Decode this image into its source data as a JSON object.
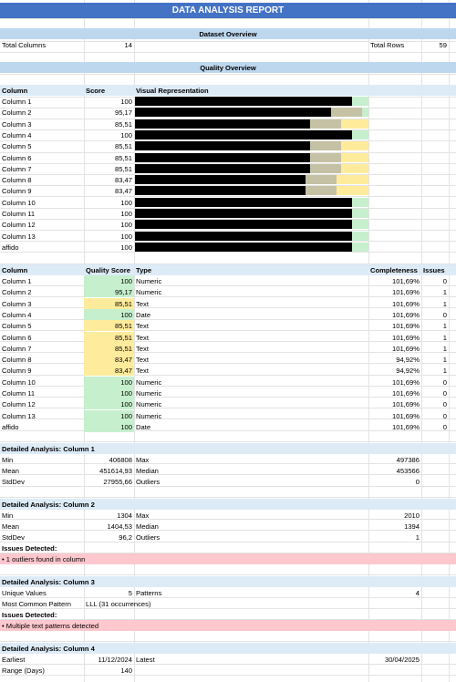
{
  "title": "DATA ANALYSIS REPORT",
  "dataset_overview": {
    "heading": "Dataset Overview",
    "total_columns_label": "Total Columns",
    "total_columns_value": "14",
    "total_rows_label": "Total Rows",
    "total_rows_value": "59"
  },
  "quality_overview": {
    "heading": "Quality Overview",
    "col_header": "Column",
    "score_header": "Score",
    "visual_header": "Visual Representation",
    "rows": [
      {
        "name": "Column 1",
        "score": "100",
        "pct": 1.0,
        "status": "green"
      },
      {
        "name": "Column 2",
        "score": "95,17",
        "pct": 0.9517,
        "status": "green"
      },
      {
        "name": "Column 3",
        "score": "85,51",
        "pct": 0.8551,
        "status": "yellow"
      },
      {
        "name": "Column 4",
        "score": "100",
        "pct": 1.0,
        "status": "green"
      },
      {
        "name": "Column 5",
        "score": "85,51",
        "pct": 0.8551,
        "status": "yellow"
      },
      {
        "name": "Column 6",
        "score": "85,51",
        "pct": 0.8551,
        "status": "yellow"
      },
      {
        "name": "Column 7",
        "score": "85,51",
        "pct": 0.8551,
        "status": "yellow"
      },
      {
        "name": "Column 8",
        "score": "83,47",
        "pct": 0.8347,
        "status": "yellow"
      },
      {
        "name": "Column 9",
        "score": "83,47",
        "pct": 0.8347,
        "status": "yellow"
      },
      {
        "name": "Column 10",
        "score": "100",
        "pct": 1.0,
        "status": "green"
      },
      {
        "name": "Column 11",
        "score": "100",
        "pct": 1.0,
        "status": "green"
      },
      {
        "name": "Column 12",
        "score": "100",
        "pct": 1.0,
        "status": "green"
      },
      {
        "name": "Column 13",
        "score": "100",
        "pct": 1.0,
        "status": "green"
      },
      {
        "name": "affido",
        "score": "100",
        "pct": 1.0,
        "status": "green"
      }
    ]
  },
  "detail_table": {
    "headers": {
      "column": "Column",
      "quality": "Quality Score",
      "type": "Type",
      "completeness": "Completeness",
      "issues": "Issues"
    },
    "rows": [
      {
        "name": "Column 1",
        "score": "100",
        "type": "Numeric",
        "completeness": "101,69%",
        "issues": "0",
        "status": "green"
      },
      {
        "name": "Column 2",
        "score": "95,17",
        "type": "Numeric",
        "completeness": "101,69%",
        "issues": "1",
        "status": "green"
      },
      {
        "name": "Column 3",
        "score": "85,51",
        "type": "Text",
        "completeness": "101,69%",
        "issues": "1",
        "status": "yellow"
      },
      {
        "name": "Column 4",
        "score": "100",
        "type": "Date",
        "completeness": "101,69%",
        "issues": "0",
        "status": "green"
      },
      {
        "name": "Column 5",
        "score": "85,51",
        "type": "Text",
        "completeness": "101,69%",
        "issues": "1",
        "status": "yellow"
      },
      {
        "name": "Column 6",
        "score": "85,51",
        "type": "Text",
        "completeness": "101,69%",
        "issues": "1",
        "status": "yellow"
      },
      {
        "name": "Column 7",
        "score": "85,51",
        "type": "Text",
        "completeness": "101,69%",
        "issues": "1",
        "status": "yellow"
      },
      {
        "name": "Column 8",
        "score": "83,47",
        "type": "Text",
        "completeness": "94,92%",
        "issues": "1",
        "status": "yellow"
      },
      {
        "name": "Column 9",
        "score": "83,47",
        "type": "Text",
        "completeness": "94,92%",
        "issues": "1",
        "status": "yellow"
      },
      {
        "name": "Column 10",
        "score": "100",
        "type": "Numeric",
        "completeness": "101,69%",
        "issues": "0",
        "status": "green"
      },
      {
        "name": "Column 11",
        "score": "100",
        "type": "Numeric",
        "completeness": "101,69%",
        "issues": "0",
        "status": "green"
      },
      {
        "name": "Column 12",
        "score": "100",
        "type": "Numeric",
        "completeness": "101,69%",
        "issues": "0",
        "status": "green"
      },
      {
        "name": "Column 13",
        "score": "100",
        "type": "Numeric",
        "completeness": "101,69%",
        "issues": "0",
        "status": "green"
      },
      {
        "name": "affido",
        "score": "100",
        "type": "Date",
        "completeness": "101,69%",
        "issues": "0",
        "status": "green"
      }
    ]
  },
  "col1": {
    "heading": "Detailed Analysis: Column 1",
    "min_label": "Min",
    "min": "406808",
    "max_label": "Max",
    "max": "497386",
    "mean_label": "Mean",
    "mean": "451614,93",
    "median_label": "Median",
    "median": "453566",
    "std_label": "StdDev",
    "std": "27955,66",
    "outliers_label": "Outliers",
    "outliers": "0"
  },
  "col2": {
    "heading": "Detailed Analysis: Column 2",
    "min_label": "Min",
    "min": "1304",
    "max_label": "Max",
    "max": "2010",
    "mean_label": "Mean",
    "mean": "1404,53",
    "median_label": "Median",
    "median": "1394",
    "std_label": "StdDev",
    "std": "96,2",
    "outliers_label": "Outliers",
    "outliers": "1",
    "issues_label": "Issues Detected:",
    "issue": "• 1 outliers found in column"
  },
  "col3": {
    "heading": "Detailed Analysis: Column 3",
    "unique_label": "Unique Values",
    "unique": "5",
    "patterns_label": "Patterns",
    "patterns": "4",
    "common_label": "Most Common Pattern",
    "common": "LLL (31 occurrences)",
    "issues_label": "Issues Detected:",
    "issue": "• Multiple text patterns detected"
  },
  "col4": {
    "heading": "Detailed Analysis: Column 4",
    "earliest_label": "Earliest",
    "earliest": "11/12/2024",
    "latest_label": "Latest",
    "latest": "30/04/2025",
    "range_label": "Range (Days)",
    "range": "140"
  }
}
